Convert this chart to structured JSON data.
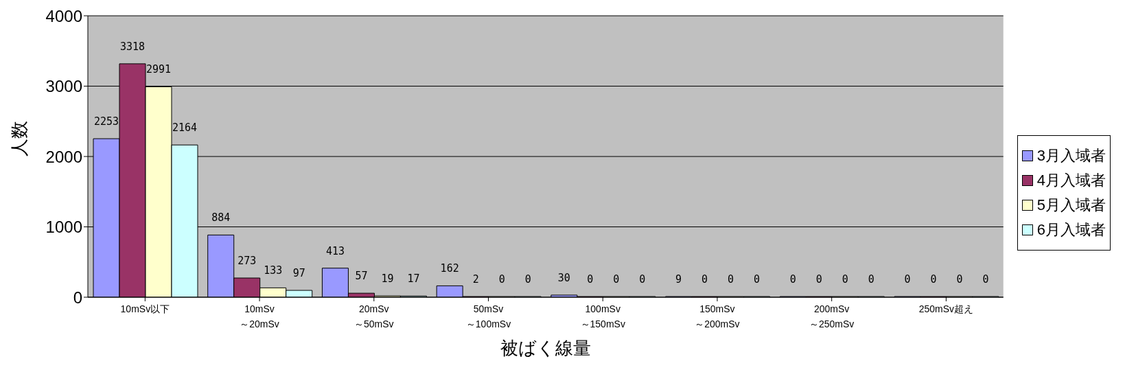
{
  "chart_data": {
    "type": "bar",
    "xlabel": "被ばく線量",
    "ylabel": "人数",
    "categories": [
      "10mSv以下",
      "10mSv\n～20mSv",
      "20mSv\n～50mSv",
      "50mSv\n～100mSv",
      "100mSv\n～150mSv",
      "150mSv\n～200mSv",
      "200mSv\n～250mSv",
      "250mSv超え"
    ],
    "series": [
      {
        "name": "3月入域者",
        "color": "#9999ff",
        "values": [
          2253,
          884,
          413,
          162,
          30,
          9,
          0,
          0
        ]
      },
      {
        "name": "4月入域者",
        "color": "#993366",
        "values": [
          3318,
          273,
          57,
          2,
          0,
          0,
          0,
          0
        ]
      },
      {
        "name": "5月入域者",
        "color": "#ffffcc",
        "values": [
          2991,
          133,
          19,
          0,
          0,
          0,
          0,
          0
        ]
      },
      {
        "name": "6月入域者",
        "color": "#ccffff",
        "values": [
          2164,
          97,
          17,
          0,
          0,
          0,
          0,
          0
        ]
      }
    ],
    "ylim": [
      0,
      4000
    ],
    "yticks": [
      0,
      1000,
      2000,
      3000,
      4000
    ],
    "grid": "y",
    "legend": "right",
    "data_labels": true
  }
}
